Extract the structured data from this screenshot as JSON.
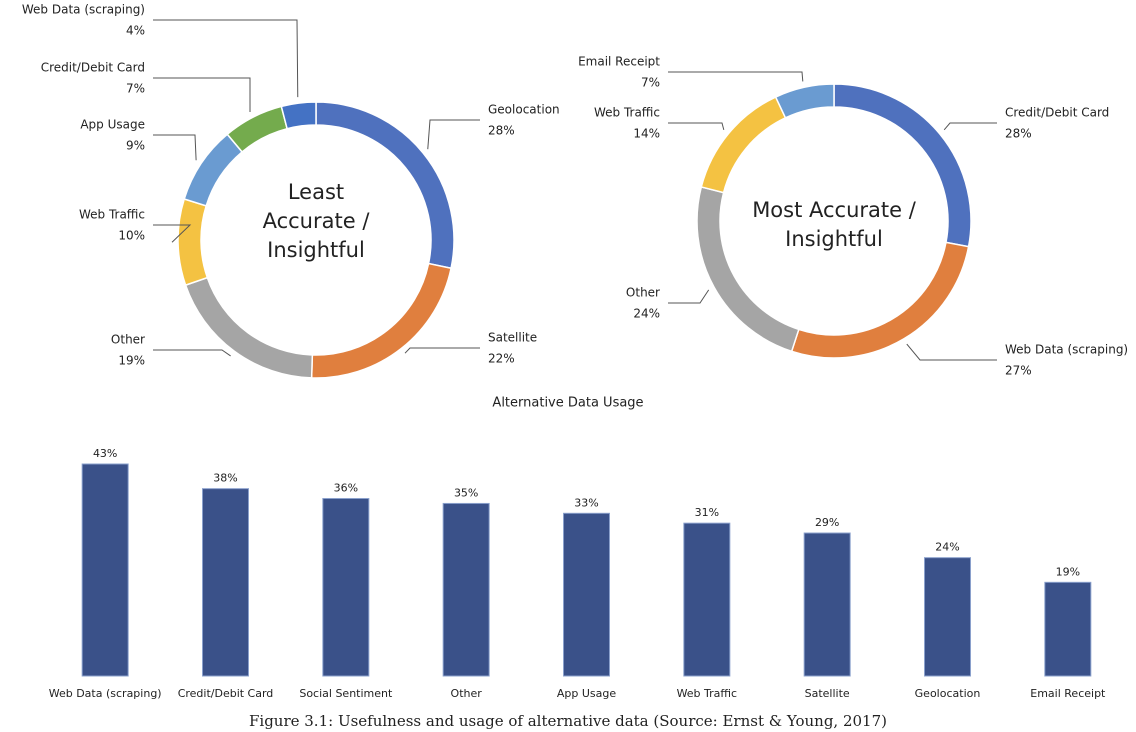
{
  "caption": "Figure 3.1: Usefulness and usage of alternative data (Source: Ernst & Young, 2017)",
  "chart_data": [
    {
      "type": "donut",
      "title": "Least Accurate / Insightful",
      "categories": [
        "Geolocation",
        "Satellite",
        "Other",
        "Web Traffic",
        "App Usage",
        "Credit/Debit Card",
        "Web Data (scraping)"
      ],
      "values": [
        28,
        22,
        19,
        10,
        9,
        7,
        4
      ],
      "value_labels": [
        "28%",
        "22%",
        "19%",
        "10%",
        "9%",
        "7%",
        "4%"
      ],
      "colors": [
        "#4f71be",
        "#e07f3e",
        "#a5a5a5",
        "#f4c242",
        "#6a9bd1",
        "#74ab4d",
        "#4472c4"
      ]
    },
    {
      "type": "donut",
      "title": "Most Accurate / Insightful",
      "categories": [
        "Credit/Debit Card",
        "Web Data (scraping)",
        "Other",
        "Web Traffic",
        "Email Receipt"
      ],
      "values": [
        28,
        27,
        24,
        14,
        7
      ],
      "value_labels": [
        "28%",
        "27%",
        "24%",
        "14%",
        "7%"
      ],
      "colors": [
        "#4f71be",
        "#e07f3e",
        "#a5a5a5",
        "#f4c242",
        "#6a9bd1"
      ]
    },
    {
      "type": "bar",
      "title": "Alternative Data Usage",
      "categories": [
        "Web Data (scraping)",
        "Credit/Debit Card",
        "Social Sentiment",
        "Other",
        "App Usage",
        "Web Traffic",
        "Satellite",
        "Geolocation",
        "Email Receipt"
      ],
      "values": [
        43,
        38,
        36,
        35,
        33,
        31,
        29,
        24,
        19
      ],
      "value_labels": [
        "43%",
        "38%",
        "36%",
        "35%",
        "33%",
        "31%",
        "29%",
        "24%",
        "19%"
      ],
      "color": "#3a5189"
    }
  ]
}
